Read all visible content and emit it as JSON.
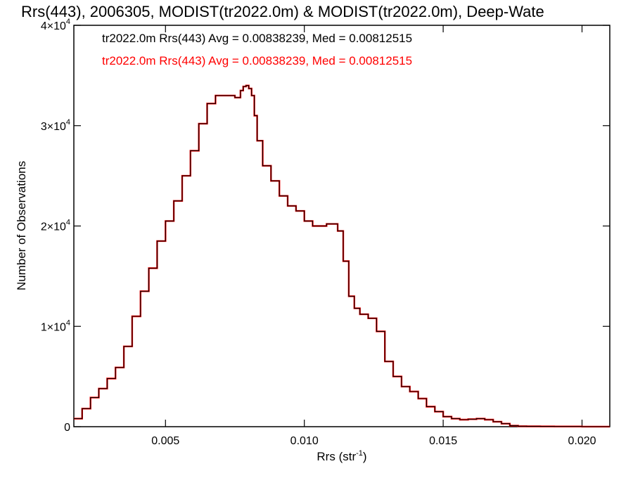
{
  "chart_data": {
    "type": "line",
    "title": "Rrs(443), 2006305, MODIST(tr2022.0m) & MODIST(tr2022.0m), Deep-Wate",
    "xlabel_base": "Rrs (str",
    "xlabel_exp": "-1",
    "xlabel_close": ")",
    "ylabel": "Number of Observations",
    "xlim": [
      0.0017,
      0.021
    ],
    "ylim": [
      0,
      40000
    ],
    "x_ticks": [
      {
        "value": 0.005,
        "label": "0.005"
      },
      {
        "value": 0.01,
        "label": "0.010"
      },
      {
        "value": 0.015,
        "label": "0.015"
      },
      {
        "value": 0.02,
        "label": "0.020"
      }
    ],
    "y_ticks": [
      {
        "value": 0,
        "mant": "0",
        "exp": ""
      },
      {
        "value": 10000,
        "mant": "1×10",
        "exp": "4"
      },
      {
        "value": 20000,
        "mant": "2×10",
        "exp": "4"
      },
      {
        "value": 30000,
        "mant": "3×10",
        "exp": "4"
      },
      {
        "value": 40000,
        "mant": "4×10",
        "exp": "4"
      }
    ],
    "annotations": [
      {
        "text": "tr2022.0m Rrs(443) Avg = 0.00838239, Med = 0.00812515",
        "color": "#000000"
      },
      {
        "text": "tr2022.0m Rrs(443) Avg = 0.00838239, Med = 0.00812515",
        "color": "#ff0000"
      }
    ],
    "series": [
      {
        "color": "#ff0000",
        "step": true,
        "x": [
          0.0017,
          0.002,
          0.0023,
          0.0026,
          0.0029,
          0.0032,
          0.0035,
          0.0038,
          0.0041,
          0.0044,
          0.0047,
          0.005,
          0.0053,
          0.0056,
          0.0059,
          0.0062,
          0.0065,
          0.0068,
          0.0071,
          0.0073,
          0.0075,
          0.0077,
          0.0078,
          0.0079,
          0.008,
          0.0081,
          0.0082,
          0.0083,
          0.0085,
          0.0088,
          0.0091,
          0.0094,
          0.0097,
          0.01,
          0.0103,
          0.0106,
          0.0108,
          0.011,
          0.0112,
          0.0114,
          0.0116,
          0.0118,
          0.012,
          0.0123,
          0.0126,
          0.0129,
          0.0132,
          0.0135,
          0.0138,
          0.0141,
          0.0144,
          0.0147,
          0.015,
          0.0153,
          0.0156,
          0.0159,
          0.0162,
          0.0165,
          0.0168,
          0.0171,
          0.0174,
          0.0177,
          0.018,
          0.0185,
          0.019,
          0.02,
          0.021
        ],
        "y": [
          800,
          1800,
          2900,
          3800,
          4800,
          5900,
          8000,
          11000,
          13500,
          15800,
          18500,
          20500,
          22500,
          25000,
          27500,
          30200,
          32200,
          33000,
          33000,
          33000,
          32800,
          33500,
          33900,
          34000,
          33700,
          33000,
          31000,
          28500,
          26000,
          24500,
          23000,
          22000,
          21500,
          20500,
          20000,
          20000,
          20200,
          20200,
          19500,
          16500,
          13000,
          11800,
          11200,
          10800,
          9500,
          6500,
          5000,
          4000,
          3500,
          2800,
          2000,
          1500,
          1000,
          800,
          700,
          750,
          800,
          700,
          500,
          300,
          100,
          50,
          40,
          30,
          20,
          10,
          5
        ]
      },
      {
        "color": "#000000",
        "step": true,
        "x": [
          0.0017,
          0.002,
          0.0023,
          0.0026,
          0.0029,
          0.0032,
          0.0035,
          0.0038,
          0.0041,
          0.0044,
          0.0047,
          0.005,
          0.0053,
          0.0056,
          0.0059,
          0.0062,
          0.0065,
          0.0068,
          0.0071,
          0.0073,
          0.0075,
          0.0077,
          0.0078,
          0.0079,
          0.008,
          0.0081,
          0.0082,
          0.0083,
          0.0085,
          0.0088,
          0.0091,
          0.0094,
          0.0097,
          0.01,
          0.0103,
          0.0106,
          0.0108,
          0.011,
          0.0112,
          0.0114,
          0.0116,
          0.0118,
          0.012,
          0.0123,
          0.0126,
          0.0129,
          0.0132,
          0.0135,
          0.0138,
          0.0141,
          0.0144,
          0.0147,
          0.015,
          0.0153,
          0.0156,
          0.0159,
          0.0162,
          0.0165,
          0.0168,
          0.0171,
          0.0174,
          0.0177,
          0.018,
          0.0185,
          0.019,
          0.02,
          0.021
        ],
        "y": [
          800,
          1800,
          2900,
          3800,
          4800,
          5900,
          8000,
          11000,
          13500,
          15800,
          18500,
          20500,
          22500,
          25000,
          27500,
          30200,
          32200,
          33000,
          33000,
          33000,
          32800,
          33500,
          33900,
          34000,
          33700,
          33000,
          31000,
          28500,
          26000,
          24500,
          23000,
          22000,
          21500,
          20500,
          20000,
          20000,
          20200,
          20200,
          19500,
          16500,
          13000,
          11800,
          11200,
          10800,
          9500,
          6500,
          5000,
          4000,
          3500,
          2800,
          2000,
          1500,
          1000,
          800,
          700,
          750,
          800,
          700,
          500,
          300,
          100,
          50,
          40,
          30,
          20,
          10,
          5
        ]
      }
    ]
  }
}
